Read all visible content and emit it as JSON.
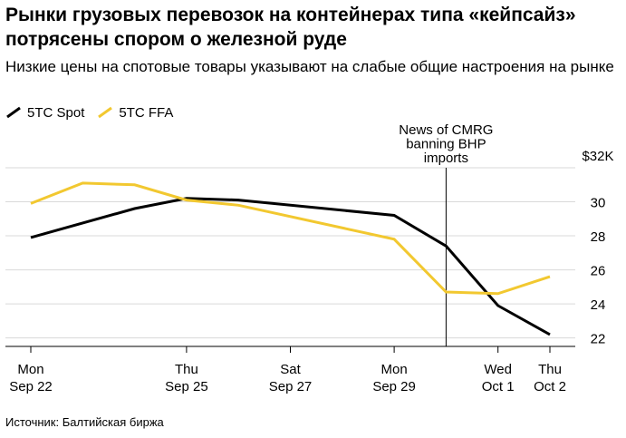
{
  "title": "Рынки грузовых перевозок на контейнерах типа «кейпсайз» потрясены спором о железной руде",
  "subtitle": "Низкие цены на спотовые товары указывают на слабые общие настроения на рынке",
  "source": "Источник: Балтийская биржа",
  "colors": {
    "spot": "#000000",
    "ffa": "#f2c830",
    "grid": "#d9d9d9",
    "axis": "#000000"
  },
  "chart_data": {
    "type": "line",
    "title": "Рынки грузовых перевозок на контейнерах типа «кейпсайз» потрясены спором о железной руде",
    "xlabel": "",
    "ylabel": "",
    "x_domain": [
      0,
      10
    ],
    "ylim": [
      21.5,
      32
    ],
    "y_ticks": [
      {
        "value": 32,
        "label": "$32K"
      },
      {
        "value": 30,
        "label": "30"
      },
      {
        "value": 28,
        "label": "28"
      },
      {
        "value": 26,
        "label": "26"
      },
      {
        "value": 24,
        "label": "24"
      },
      {
        "value": 22,
        "label": "22"
      }
    ],
    "x_ticks": [
      {
        "x": 0,
        "line1": "Mon",
        "line2": "Sep 22"
      },
      {
        "x": 3,
        "line1": "Thu",
        "line2": "Sep 25"
      },
      {
        "x": 5,
        "line1": "Sat",
        "line2": "Sep 27"
      },
      {
        "x": 7,
        "line1": "Mon",
        "line2": "Sep 29"
      },
      {
        "x": 9,
        "line1": "Wed",
        "line2": "Oct 1"
      },
      {
        "x": 10,
        "line1": "Thu",
        "line2": "Oct 2"
      }
    ],
    "series": [
      {
        "name": "5TC Spot",
        "color": "#000000",
        "points": [
          [
            0,
            27.9
          ],
          [
            2,
            29.6
          ],
          [
            3,
            30.2
          ],
          [
            4,
            30.1
          ],
          [
            7,
            29.2
          ],
          [
            8,
            27.4
          ],
          [
            9,
            23.9
          ],
          [
            10,
            22.2
          ]
        ]
      },
      {
        "name": "5TC FFA",
        "color": "#f2c830",
        "points": [
          [
            0,
            29.9
          ],
          [
            1,
            31.1
          ],
          [
            2,
            31.0
          ],
          [
            3,
            30.1
          ],
          [
            4,
            29.8
          ],
          [
            7,
            27.8
          ],
          [
            8,
            24.7
          ],
          [
            9,
            24.6
          ],
          [
            10,
            25.6
          ]
        ]
      }
    ],
    "annotations": [
      {
        "x": 8,
        "lines": [
          "News of CMRG",
          "banning BHP",
          "imports"
        ]
      }
    ]
  }
}
